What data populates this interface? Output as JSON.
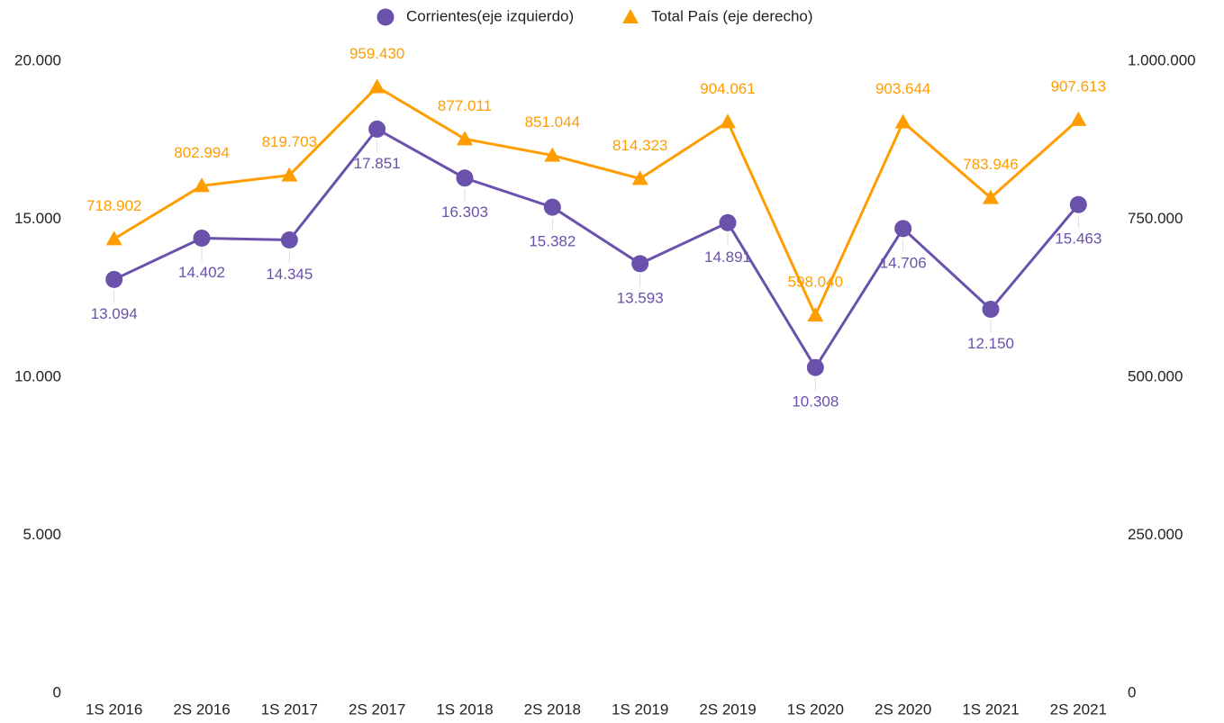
{
  "chart_data": {
    "type": "line",
    "categories": [
      "1S 2016",
      "2S 2016",
      "1S 2017",
      "2S 2017",
      "1S 2018",
      "2S 2018",
      "1S 2019",
      "2S 2019",
      "1S 2020",
      "2S 2020",
      "1S 2021",
      "2S 2021"
    ],
    "series": [
      {
        "name": "Corrientes(eje izquierdo)",
        "color": "#6a51ab",
        "marker": "circle",
        "values": [
          13094,
          14402,
          14345,
          17851,
          16303,
          15382,
          13593,
          14891,
          10308,
          14706,
          12150,
          15463
        ],
        "value_labels": [
          "13.094",
          "14.402",
          "14.345",
          "17.851",
          "16.303",
          "15.382",
          "13.593",
          "14.891",
          "10.308",
          "14.706",
          "12.150",
          "15.463"
        ]
      },
      {
        "name": "Total País (eje derecho)",
        "color": "#ff9d00",
        "marker": "triangle",
        "axis": "y2",
        "values": [
          718902,
          802994,
          819703,
          959430,
          877011,
          851044,
          814323,
          904061,
          598040,
          903644,
          783946,
          907613
        ],
        "value_labels": [
          "718.902",
          "802.994",
          "819.703",
          "959.430",
          "877.011",
          "851.044",
          "814.323",
          "904.061",
          "598.040",
          "903.644",
          "783.946",
          "907.613"
        ]
      }
    ],
    "ylim": [
      0,
      20000
    ],
    "yticks": [
      0,
      {
        "value": 5000,
        "label": "5.000"
      },
      {
        "value": 10000,
        "label": "10.000"
      },
      {
        "value": 15000,
        "label": "15.000"
      },
      {
        "value": 20000,
        "label": "20.000"
      }
    ],
    "y2lim": [
      0,
      1000000
    ],
    "y2ticks": [
      0,
      {
        "value": 250000,
        "label": "250.000"
      },
      {
        "value": 500000,
        "label": "500.000"
      },
      {
        "value": 750000,
        "label": "750.000"
      },
      {
        "value": 1000000,
        "label": "1.000.000"
      }
    ],
    "grid": false,
    "legend": "top"
  }
}
